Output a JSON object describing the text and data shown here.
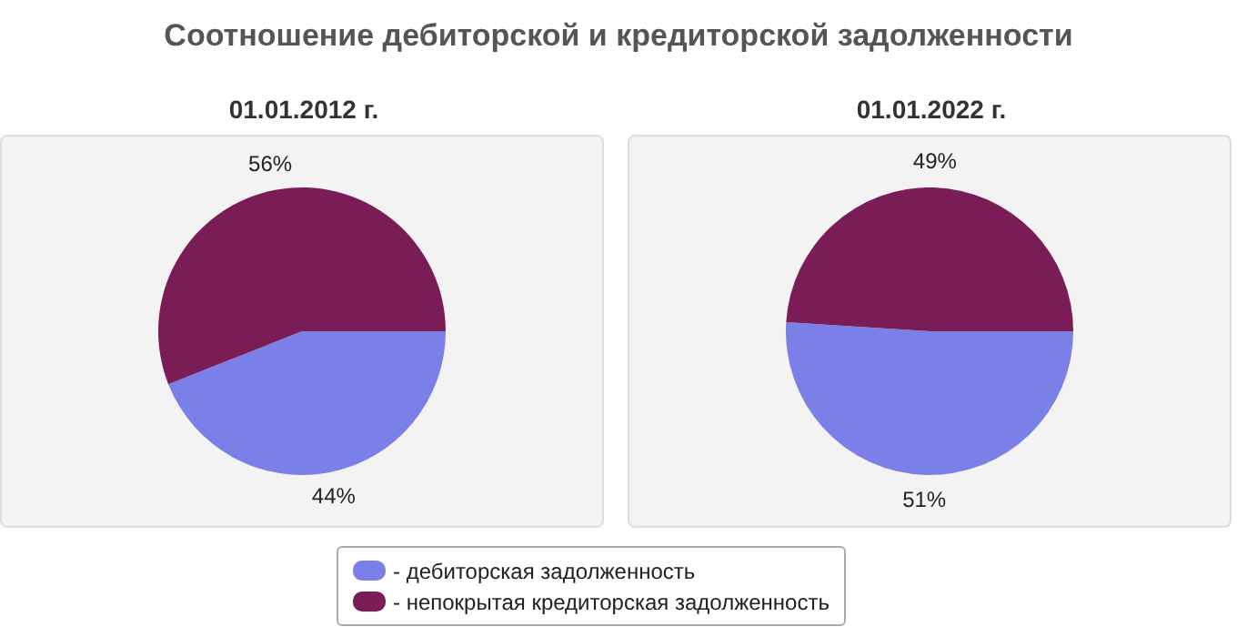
{
  "chart_data": [
    {
      "type": "pie",
      "title": "Соотношение дебиторской и кредиторской задолженности",
      "subtitle": "01.01.2012 г.",
      "categories": [
        "- дебиторская задолженность",
        "- непокрытая кредиторская задолженность"
      ],
      "values": [
        44,
        56
      ],
      "value_labels": [
        "44%",
        "56%"
      ],
      "colors": [
        "#7b7fe8",
        "#7a1c55"
      ],
      "legend": "bottom"
    },
    {
      "type": "pie",
      "subtitle": "01.01.2022 г.",
      "categories": [
        null,
        null
      ],
      "values": [
        51,
        49
      ],
      "value_labels": [
        "51%",
        "49%"
      ],
      "colors": [
        "#7b7fe8",
        "#7a1c55"
      ]
    }
  ]
}
